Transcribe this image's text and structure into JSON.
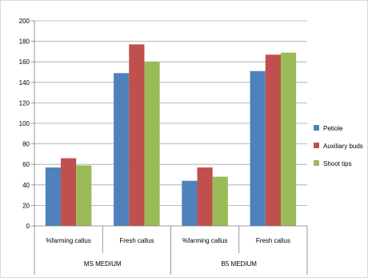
{
  "chart_data": {
    "type": "bar",
    "title": "",
    "xlabel": "",
    "ylabel": "",
    "ylim": [
      0,
      200
    ],
    "yticks": [
      0,
      20,
      40,
      60,
      80,
      100,
      120,
      140,
      160,
      180,
      200
    ],
    "grid": true,
    "legend": "right",
    "categories": [
      "%farming callus",
      "Fresh callus",
      "%farming callus",
      "Fresh callus"
    ],
    "groups": [
      "MS MEDIUM",
      "B5 MEDIUM"
    ],
    "series": [
      {
        "name": "Petiole",
        "color": "#4F81BD",
        "values": [
          57,
          149,
          44,
          151
        ]
      },
      {
        "name": "Auxiliary buds",
        "color": "#C0504D",
        "values": [
          66,
          177,
          57,
          167
        ]
      },
      {
        "name": "Shoot tips",
        "color": "#9BBB59",
        "values": [
          59,
          160,
          48,
          169
        ]
      }
    ]
  }
}
